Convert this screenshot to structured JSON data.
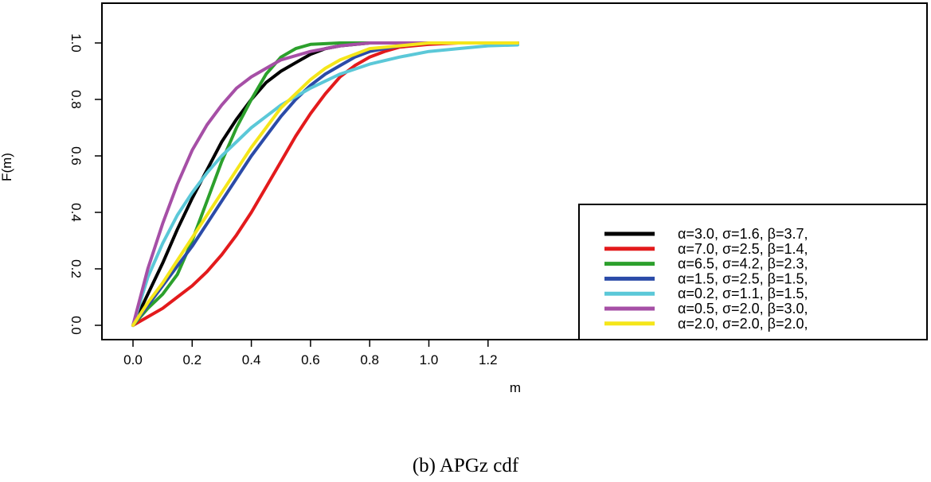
{
  "chart_data": {
    "type": "line",
    "xlabel": "m",
    "ylabel": "F(m)",
    "xlim": [
      -0.05,
      1.35
    ],
    "ylim": [
      -0.05,
      1.13
    ],
    "x_ticks": [
      "0.0",
      "0.2",
      "0.4",
      "0.6",
      "0.8",
      "1.0",
      "1.2"
    ],
    "y_ticks": [
      "0.0",
      "0.2",
      "0.4",
      "0.6",
      "0.8",
      "1.0"
    ],
    "grid": false,
    "legend_position": "bottom-right",
    "series": [
      {
        "name": "α=3.0, σ=1.6, β=3.7,",
        "color": "#000000",
        "x": [
          0,
          0.05,
          0.1,
          0.15,
          0.2,
          0.25,
          0.3,
          0.35,
          0.4,
          0.45,
          0.5,
          0.55,
          0.6,
          0.65,
          0.7,
          0.8,
          1.0,
          1.3
        ],
        "y": [
          0,
          0.11,
          0.22,
          0.34,
          0.45,
          0.55,
          0.65,
          0.73,
          0.8,
          0.86,
          0.9,
          0.93,
          0.96,
          0.98,
          0.99,
          1.0,
          1.0,
          1.0
        ]
      },
      {
        "name": "α=7.0, σ=2.5, β=1.4,",
        "color": "#e31a1c",
        "x": [
          0,
          0.05,
          0.1,
          0.15,
          0.2,
          0.25,
          0.3,
          0.35,
          0.4,
          0.45,
          0.5,
          0.55,
          0.6,
          0.65,
          0.7,
          0.75,
          0.8,
          0.85,
          0.9,
          1.0,
          1.1,
          1.3
        ],
        "y": [
          0,
          0.03,
          0.06,
          0.1,
          0.14,
          0.19,
          0.25,
          0.32,
          0.4,
          0.49,
          0.58,
          0.67,
          0.75,
          0.82,
          0.88,
          0.92,
          0.95,
          0.97,
          0.985,
          0.995,
          1.0,
          1.0
        ]
      },
      {
        "name": "α=6.5, σ=4.2, β=2.3,",
        "color": "#2ca02c",
        "x": [
          0,
          0.05,
          0.1,
          0.15,
          0.2,
          0.25,
          0.3,
          0.35,
          0.4,
          0.45,
          0.5,
          0.55,
          0.6,
          0.7,
          1.0,
          1.3
        ],
        "y": [
          0,
          0.06,
          0.11,
          0.18,
          0.3,
          0.44,
          0.58,
          0.7,
          0.8,
          0.89,
          0.95,
          0.98,
          0.995,
          1.0,
          1.0,
          1.0
        ]
      },
      {
        "name": "α=1.5, σ=2.5, β=1.5,",
        "color": "#2b4ba8",
        "x": [
          0,
          0.05,
          0.1,
          0.15,
          0.2,
          0.25,
          0.3,
          0.35,
          0.4,
          0.45,
          0.5,
          0.55,
          0.6,
          0.65,
          0.7,
          0.75,
          0.8,
          0.9,
          1.0,
          1.1,
          1.3
        ],
        "y": [
          0,
          0.07,
          0.14,
          0.21,
          0.28,
          0.36,
          0.44,
          0.52,
          0.6,
          0.67,
          0.74,
          0.8,
          0.85,
          0.89,
          0.92,
          0.95,
          0.97,
          0.99,
          1.0,
          1.0,
          1.0
        ]
      },
      {
        "name": "α=0.2, σ=1.1, β=1.5,",
        "color": "#5bc8d8",
        "x": [
          0,
          0.05,
          0.1,
          0.15,
          0.2,
          0.25,
          0.3,
          0.35,
          0.4,
          0.45,
          0.5,
          0.6,
          0.7,
          0.8,
          0.9,
          1.0,
          1.1,
          1.2,
          1.3
        ],
        "y": [
          0,
          0.17,
          0.29,
          0.39,
          0.47,
          0.54,
          0.6,
          0.65,
          0.7,
          0.74,
          0.78,
          0.84,
          0.89,
          0.925,
          0.95,
          0.97,
          0.98,
          0.99,
          0.993
        ]
      },
      {
        "name": "α=0.5, σ=2.0, β=3.0,",
        "color": "#a64fa6",
        "x": [
          0,
          0.05,
          0.1,
          0.15,
          0.2,
          0.25,
          0.3,
          0.35,
          0.4,
          0.45,
          0.5,
          0.6,
          0.7,
          0.8,
          1.0,
          1.3
        ],
        "y": [
          0,
          0.2,
          0.36,
          0.5,
          0.62,
          0.71,
          0.78,
          0.84,
          0.88,
          0.91,
          0.94,
          0.97,
          0.99,
          1.0,
          1.0,
          1.0
        ]
      },
      {
        "name": "α=2.0, σ=2.0, β=2.0,",
        "color": "#f5e61a",
        "x": [
          0,
          0.05,
          0.1,
          0.15,
          0.2,
          0.25,
          0.3,
          0.35,
          0.4,
          0.45,
          0.5,
          0.55,
          0.6,
          0.65,
          0.7,
          0.75,
          0.8,
          0.9,
          1.0,
          1.3
        ],
        "y": [
          0,
          0.08,
          0.15,
          0.23,
          0.31,
          0.39,
          0.47,
          0.55,
          0.63,
          0.7,
          0.77,
          0.82,
          0.87,
          0.91,
          0.94,
          0.96,
          0.98,
          0.99,
          1.0,
          1.0
        ]
      }
    ]
  },
  "caption": "(b)  APGz cdf"
}
